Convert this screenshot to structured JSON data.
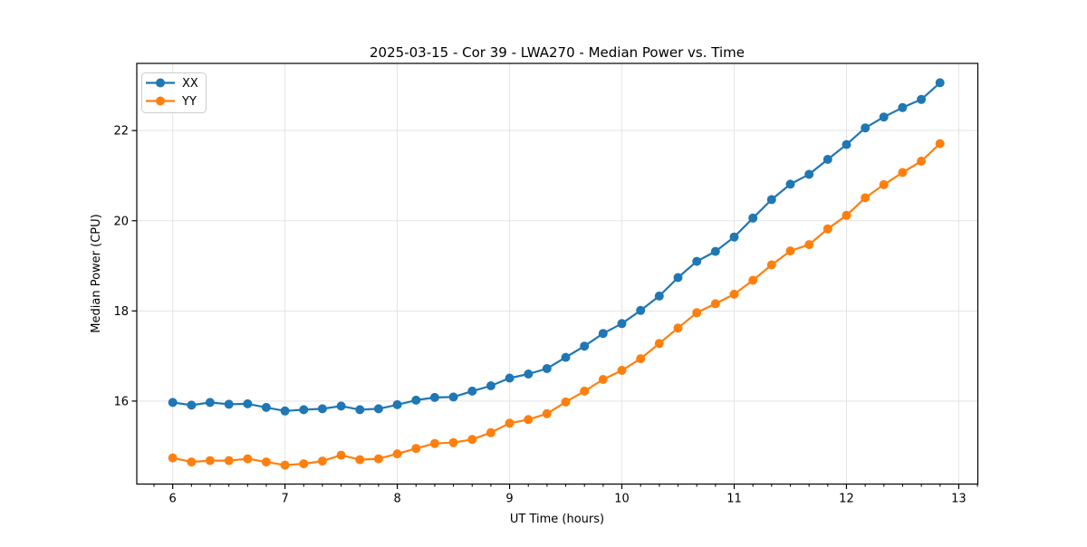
{
  "figure": {
    "background": "#ffffff"
  },
  "chart_data": {
    "type": "line",
    "title": "2025-03-15 - Cor 39 - LWA270 - Median Power vs. Time",
    "xlabel": "UT Time (hours)",
    "ylabel": "Median Power (CPU)",
    "xlim": [
      5.68,
      13.17
    ],
    "ylim": [
      14.16,
      23.49
    ],
    "x_ticks": [
      6,
      7,
      8,
      9,
      10,
      11,
      12,
      13
    ],
    "y_ticks": [
      16,
      18,
      20,
      22
    ],
    "x_minor_step": 0.16667,
    "grid": true,
    "grid_color": "#e3e3e3",
    "legend": {
      "position": "upper-left"
    },
    "x": [
      6.0,
      6.167,
      6.333,
      6.5,
      6.667,
      6.833,
      7.0,
      7.167,
      7.333,
      7.5,
      7.667,
      7.833,
      8.0,
      8.167,
      8.333,
      8.5,
      8.667,
      8.833,
      9.0,
      9.167,
      9.333,
      9.5,
      9.667,
      9.833,
      10.0,
      10.167,
      10.333,
      10.5,
      10.667,
      10.833,
      11.0,
      11.167,
      11.333,
      11.5,
      11.667,
      11.833,
      12.0,
      12.167,
      12.333,
      12.5,
      12.667,
      12.833
    ],
    "series": [
      {
        "name": "XX",
        "color": "#1f77b4",
        "values": [
          15.97,
          15.91,
          15.97,
          15.93,
          15.94,
          15.86,
          15.78,
          15.81,
          15.83,
          15.89,
          15.81,
          15.83,
          15.92,
          16.02,
          16.08,
          16.09,
          16.22,
          16.34,
          16.51,
          16.6,
          16.72,
          16.97,
          17.22,
          17.5,
          17.72,
          18.01,
          18.33,
          18.74,
          19.1,
          19.32,
          19.64,
          20.06,
          20.47,
          20.81,
          21.03,
          21.36,
          21.69,
          22.06,
          22.3,
          22.51,
          22.69,
          23.06
        ]
      },
      {
        "name": "YY",
        "color": "#ff7f0e",
        "values": [
          14.74,
          14.65,
          14.68,
          14.68,
          14.72,
          14.65,
          14.58,
          14.61,
          14.67,
          14.8,
          14.7,
          14.72,
          14.83,
          14.95,
          15.06,
          15.08,
          15.15,
          15.3,
          15.51,
          15.59,
          15.72,
          15.98,
          16.22,
          16.48,
          16.68,
          16.94,
          17.28,
          17.62,
          17.96,
          18.16,
          18.37,
          18.68,
          19.02,
          19.33,
          19.47,
          19.82,
          20.12,
          20.51,
          20.8,
          21.07,
          21.32,
          21.71
        ]
      }
    ]
  }
}
